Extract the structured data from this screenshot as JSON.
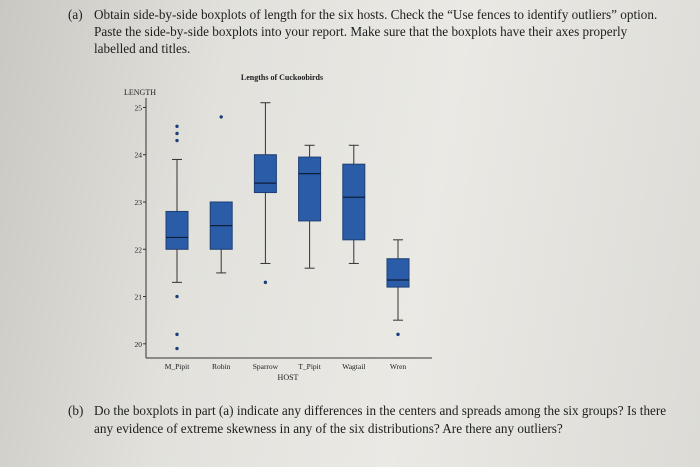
{
  "question_a": {
    "label": "(a)",
    "text": "Obtain side-by-side boxplots of length for the six hosts. Check the “Use fences to identify outliers” option. Paste the side-by-side boxplots into your report. Make sure that the boxplots have their axes properly labelled and titles."
  },
  "question_b": {
    "label": "(b)",
    "text": "Do the boxplots in part (a) indicate any differences in the centers and spreads among the six groups? Is there any evidence of extreme skewness in any of the six distributions? Are there any outliers?"
  },
  "colors": {
    "box": "#2a5ca8",
    "whisker": "#333333",
    "outlier": "#1a3f7a"
  },
  "chart_data": {
    "type": "boxplot",
    "title": "Lengths of Cuckoobirds",
    "xlabel": "HOST",
    "ylabel": "LENGTH",
    "ylim": [
      19.7,
      25.2
    ],
    "yticks": [
      "25",
      "24",
      "23",
      "22",
      "21",
      "20"
    ],
    "ytick_values": [
      25,
      24,
      23,
      22,
      21,
      20
    ],
    "categories": [
      "M_Pipit",
      "Robin",
      "Sparrow",
      "T_Pipit",
      "Wagtail",
      "Wren"
    ],
    "boxes": [
      {
        "name": "M_Pipit",
        "whisker_low": 21.3,
        "q1": 22.0,
        "median": 22.25,
        "q3": 22.8,
        "whisker_high": 23.9,
        "outliers": [
          24.3,
          24.45,
          24.6,
          21.0,
          20.2,
          19.9
        ]
      },
      {
        "name": "Robin",
        "whisker_low": 21.5,
        "q1": 22.0,
        "median": 22.5,
        "q3": 23.0,
        "whisker_high": 23.0,
        "outliers": [
          24.8
        ]
      },
      {
        "name": "Sparrow",
        "whisker_low": 21.7,
        "q1": 23.2,
        "median": 23.4,
        "q3": 24.0,
        "whisker_high": 25.1,
        "outliers": [
          21.3
        ]
      },
      {
        "name": "T_Pipit",
        "whisker_low": 21.6,
        "q1": 22.6,
        "median": 23.6,
        "q3": 23.95,
        "whisker_high": 24.2,
        "outliers": []
      },
      {
        "name": "Wagtail",
        "whisker_low": 21.7,
        "q1": 22.2,
        "median": 23.1,
        "q3": 23.8,
        "whisker_high": 24.2,
        "outliers": []
      },
      {
        "name": "Wren",
        "whisker_low": 20.5,
        "q1": 21.2,
        "median": 21.35,
        "q3": 21.8,
        "whisker_high": 22.2,
        "outliers": [
          20.2
        ]
      }
    ]
  }
}
